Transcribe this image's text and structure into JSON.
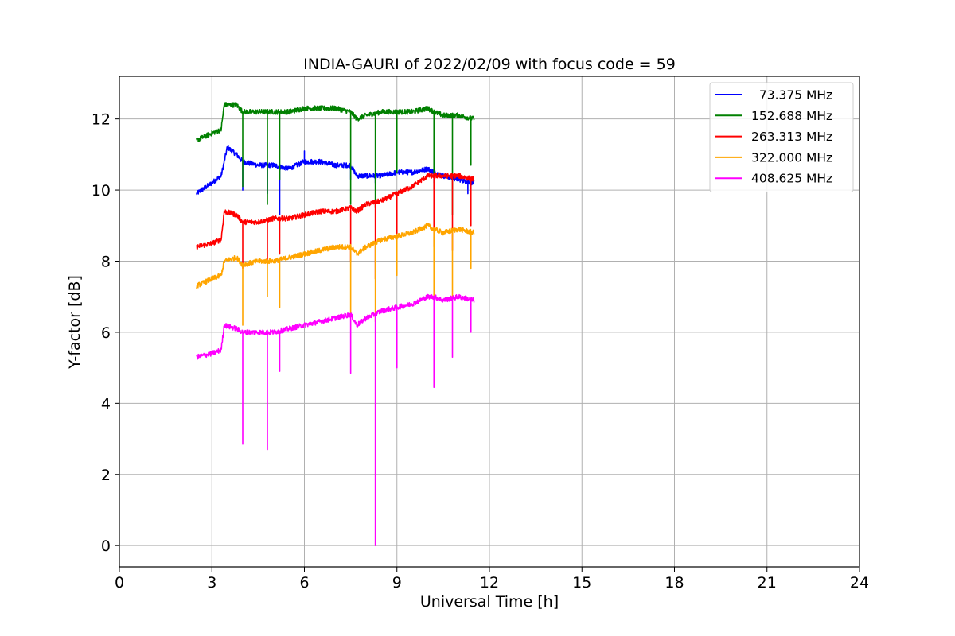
{
  "chart_data": {
    "type": "line",
    "title": "INDIA-GAURI of 2022/02/09 with focus code = 59",
    "xlabel": "Universal Time [h]",
    "ylabel": "Y-factor [dB]",
    "xlim": [
      0,
      24
    ],
    "ylim": [
      -0.6,
      13.2
    ],
    "xticks": [
      0,
      3,
      6,
      9,
      12,
      15,
      18,
      21,
      24
    ],
    "yticks": [
      0,
      2,
      4,
      6,
      8,
      10,
      12
    ],
    "grid": true,
    "legend_position": "top-right",
    "series": [
      {
        "name": "  73.375 MHz",
        "color": "#0000ff",
        "x": [
          2.5,
          3.0,
          3.3,
          3.5,
          3.8,
          4.0,
          4.5,
          5.0,
          5.5,
          6.0,
          6.5,
          7.0,
          7.5,
          7.7,
          8.0,
          8.5,
          9.0,
          9.5,
          10.0,
          10.2,
          10.5,
          11.0,
          11.5
        ],
        "values": [
          9.9,
          10.2,
          10.4,
          11.2,
          11.0,
          10.8,
          10.7,
          10.7,
          10.6,
          10.8,
          10.8,
          10.7,
          10.7,
          10.4,
          10.4,
          10.4,
          10.5,
          10.5,
          10.6,
          10.5,
          10.4,
          10.3,
          10.2
        ],
        "spikes": [
          [
            4.0,
            10.0
          ],
          [
            4.8,
            9.9
          ],
          [
            5.2,
            9.3
          ],
          [
            6.0,
            11.1
          ],
          [
            7.5,
            10.3
          ],
          [
            8.3,
            10.2
          ],
          [
            10.2,
            10.2
          ],
          [
            11.3,
            9.9
          ]
        ]
      },
      {
        "name": "152.688 MHz",
        "color": "#008000",
        "x": [
          2.5,
          3.0,
          3.3,
          3.4,
          3.8,
          4.0,
          4.5,
          5.0,
          5.5,
          6.0,
          6.5,
          7.0,
          7.5,
          7.7,
          8.0,
          8.5,
          9.0,
          9.5,
          10.0,
          10.2,
          10.5,
          11.0,
          11.5
        ],
        "values": [
          11.4,
          11.6,
          11.7,
          12.4,
          12.4,
          12.2,
          12.2,
          12.2,
          12.2,
          12.3,
          12.3,
          12.3,
          12.2,
          12.0,
          12.1,
          12.2,
          12.2,
          12.2,
          12.3,
          12.2,
          12.1,
          12.1,
          12.0
        ],
        "spikes": [
          [
            4.0,
            10.1
          ],
          [
            4.8,
            9.6
          ],
          [
            5.2,
            10.3
          ],
          [
            7.5,
            9.6
          ],
          [
            8.3,
            9.5
          ],
          [
            9.0,
            10.5
          ],
          [
            10.2,
            10.0
          ],
          [
            10.8,
            9.3
          ],
          [
            11.4,
            10.7
          ]
        ]
      },
      {
        "name": "263.313 MHz",
        "color": "#ff0000",
        "x": [
          2.5,
          3.0,
          3.3,
          3.4,
          3.8,
          4.0,
          4.5,
          5.0,
          5.5,
          6.0,
          6.5,
          7.0,
          7.5,
          7.7,
          8.0,
          8.5,
          9.0,
          9.5,
          10.0,
          10.2,
          10.5,
          11.0,
          11.5
        ],
        "values": [
          8.4,
          8.5,
          8.6,
          9.4,
          9.3,
          9.1,
          9.1,
          9.2,
          9.2,
          9.3,
          9.4,
          9.4,
          9.5,
          9.4,
          9.6,
          9.7,
          9.9,
          10.1,
          10.4,
          10.4,
          10.4,
          10.4,
          10.3
        ],
        "spikes": [
          [
            4.0,
            7.8
          ],
          [
            4.8,
            8.0
          ],
          [
            5.2,
            8.2
          ],
          [
            7.5,
            8.0
          ],
          [
            8.3,
            7.5
          ],
          [
            9.0,
            8.6
          ],
          [
            10.2,
            8.4
          ],
          [
            10.8,
            8.3
          ],
          [
            11.4,
            9.0
          ]
        ]
      },
      {
        "name": "322.000 MHz",
        "color": "#ffa500",
        "x": [
          2.5,
          3.0,
          3.3,
          3.4,
          3.8,
          4.0,
          4.5,
          5.0,
          5.5,
          6.0,
          6.5,
          7.0,
          7.5,
          7.7,
          8.0,
          8.5,
          9.0,
          9.5,
          10.0,
          10.2,
          10.5,
          11.0,
          11.5
        ],
        "values": [
          7.3,
          7.5,
          7.6,
          8.0,
          8.1,
          7.9,
          8.0,
          8.0,
          8.1,
          8.2,
          8.3,
          8.4,
          8.4,
          8.2,
          8.4,
          8.6,
          8.7,
          8.8,
          9.0,
          8.9,
          8.8,
          8.9,
          8.8
        ],
        "spikes": [
          [
            4.0,
            6.2
          ],
          [
            4.8,
            7.0
          ],
          [
            5.2,
            6.7
          ],
          [
            7.5,
            6.5
          ],
          [
            8.3,
            6.3
          ],
          [
            9.0,
            7.6
          ],
          [
            10.2,
            6.9
          ],
          [
            10.8,
            7.0
          ],
          [
            11.4,
            7.8
          ]
        ]
      },
      {
        "name": "408.625 MHz",
        "color": "#ff00ff",
        "x": [
          2.5,
          3.0,
          3.3,
          3.4,
          3.8,
          4.0,
          4.5,
          5.0,
          5.5,
          6.0,
          6.5,
          7.0,
          7.5,
          7.7,
          8.0,
          8.5,
          9.0,
          9.5,
          10.0,
          10.2,
          10.5,
          11.0,
          11.5
        ],
        "values": [
          5.3,
          5.4,
          5.5,
          6.2,
          6.1,
          6.0,
          6.0,
          6.0,
          6.1,
          6.2,
          6.3,
          6.4,
          6.5,
          6.2,
          6.4,
          6.6,
          6.7,
          6.8,
          7.0,
          7.0,
          6.9,
          7.0,
          6.9
        ],
        "spikes": [
          [
            4.0,
            2.85
          ],
          [
            4.8,
            2.7
          ],
          [
            5.2,
            4.9
          ],
          [
            7.5,
            4.85
          ],
          [
            8.3,
            0.0
          ],
          [
            9.0,
            5.0
          ],
          [
            10.2,
            4.45
          ],
          [
            10.8,
            5.3
          ],
          [
            11.4,
            6.0
          ]
        ]
      }
    ]
  }
}
